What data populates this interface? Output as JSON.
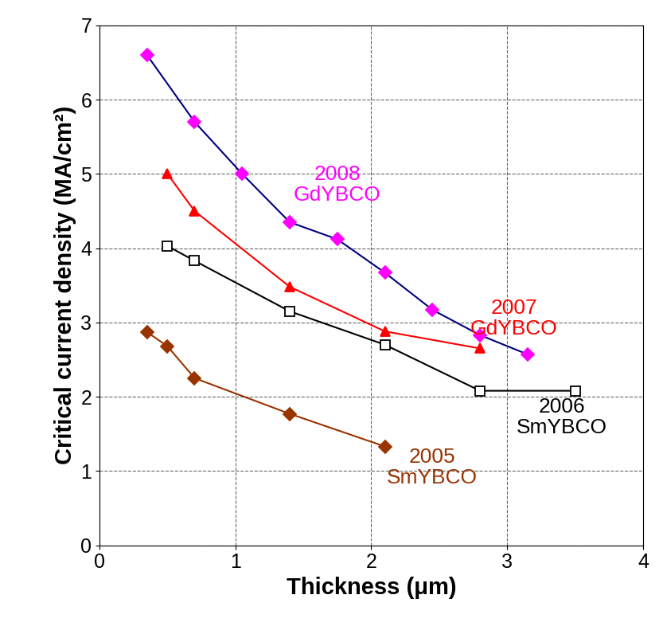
{
  "chart_data": {
    "type": "line",
    "x_label": "Thickness (μm)",
    "y_label": "Critical current density (MA/cm²)",
    "xlim": [
      0,
      4
    ],
    "xticks": [
      0,
      1,
      2,
      3,
      4
    ],
    "ylim": [
      0,
      7
    ],
    "yticks": [
      0,
      1,
      2,
      3,
      4,
      5,
      6,
      7
    ],
    "grid": true,
    "series": [
      {
        "name": "2008\nGdYBCO",
        "color": "#ff00ff",
        "marker": "diamond",
        "x": [
          0.35,
          0.7,
          1.05,
          1.4,
          1.75,
          2.1,
          2.45,
          2.8,
          3.15
        ],
        "values": [
          6.6,
          5.7,
          5.0,
          4.35,
          4.12,
          3.67,
          3.17,
          2.83,
          2.57
        ]
      },
      {
        "name": "2007\nGdYBCO",
        "color": "#ff0000",
        "marker": "triangle",
        "x": [
          0.5,
          0.7,
          1.4,
          2.1,
          2.8
        ],
        "values": [
          5.0,
          4.5,
          3.48,
          2.88,
          2.65
        ]
      },
      {
        "name": "2006\nSmYBCO",
        "color": "#000000",
        "marker": "square_open",
        "x": [
          0.5,
          0.7,
          1.4,
          2.1,
          2.8,
          3.5
        ],
        "values": [
          4.03,
          3.83,
          3.15,
          2.7,
          2.08,
          2.08
        ]
      },
      {
        "name": "2005\nSmYBCO",
        "color": "#993300",
        "marker": "diamond",
        "x": [
          0.35,
          0.5,
          0.7,
          1.4,
          2.1
        ],
        "values": [
          2.87,
          2.68,
          2.25,
          1.77,
          1.33
        ]
      }
    ]
  }
}
